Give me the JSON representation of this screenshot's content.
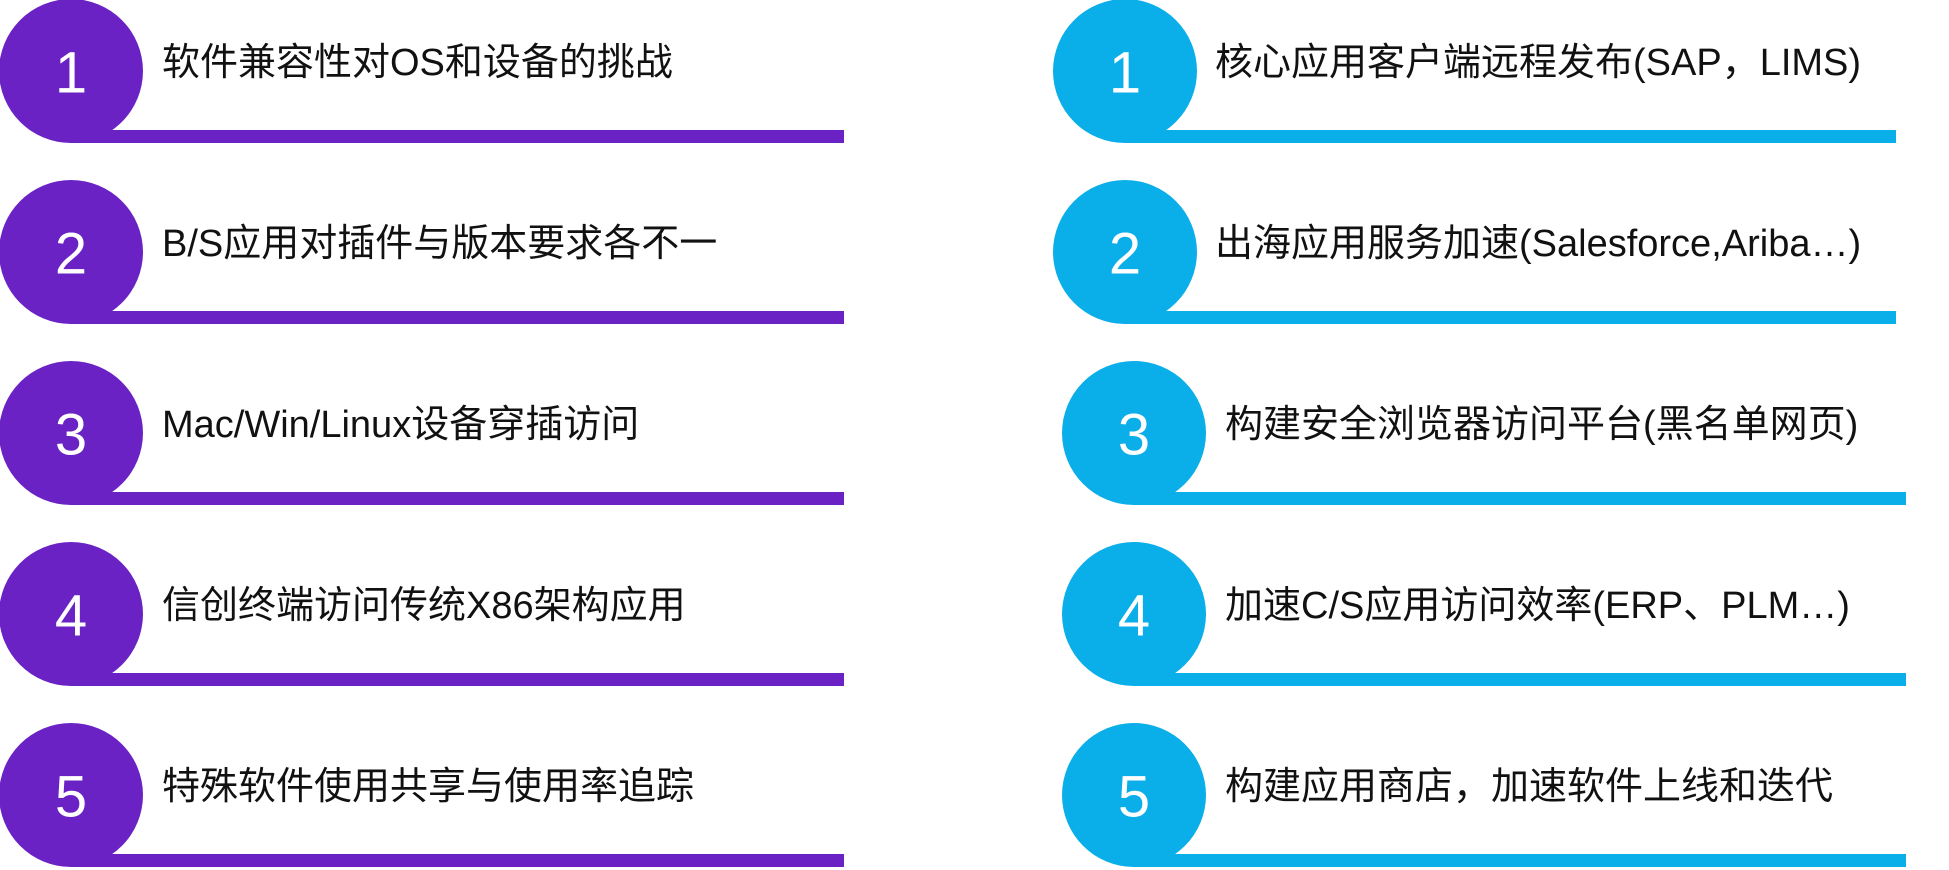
{
  "left": {
    "color": "#6a22c4",
    "items": [
      {
        "number": 1,
        "text": "软件兼容性对OS和设备的挑战"
      },
      {
        "number": 2,
        "text": "B/S应用对插件与版本要求各不一"
      },
      {
        "number": 3,
        "text": "Mac/Win/Linux设备穿插访问"
      },
      {
        "number": 4,
        "text": "信创终端访问传统X86架构应用"
      },
      {
        "number": 5,
        "text": "特殊软件使用共享与使用率追踪"
      }
    ]
  },
  "right": {
    "color": "#0aaee8",
    "items": [
      {
        "number": 1,
        "text": "核心应用客户端远程发布(SAP，LIMS)"
      },
      {
        "number": 2,
        "text": "出海应用服务加速(Salesforce,Ariba…)"
      },
      {
        "number": 3,
        "text": "构建安全浏览器访问平台(黑名单网页)"
      },
      {
        "number": 4,
        "text": "加速C/S应用访问效率(ERP、PLM…)"
      },
      {
        "number": 5,
        "text": "构建应用商店，加速软件上线和迭代"
      }
    ]
  }
}
